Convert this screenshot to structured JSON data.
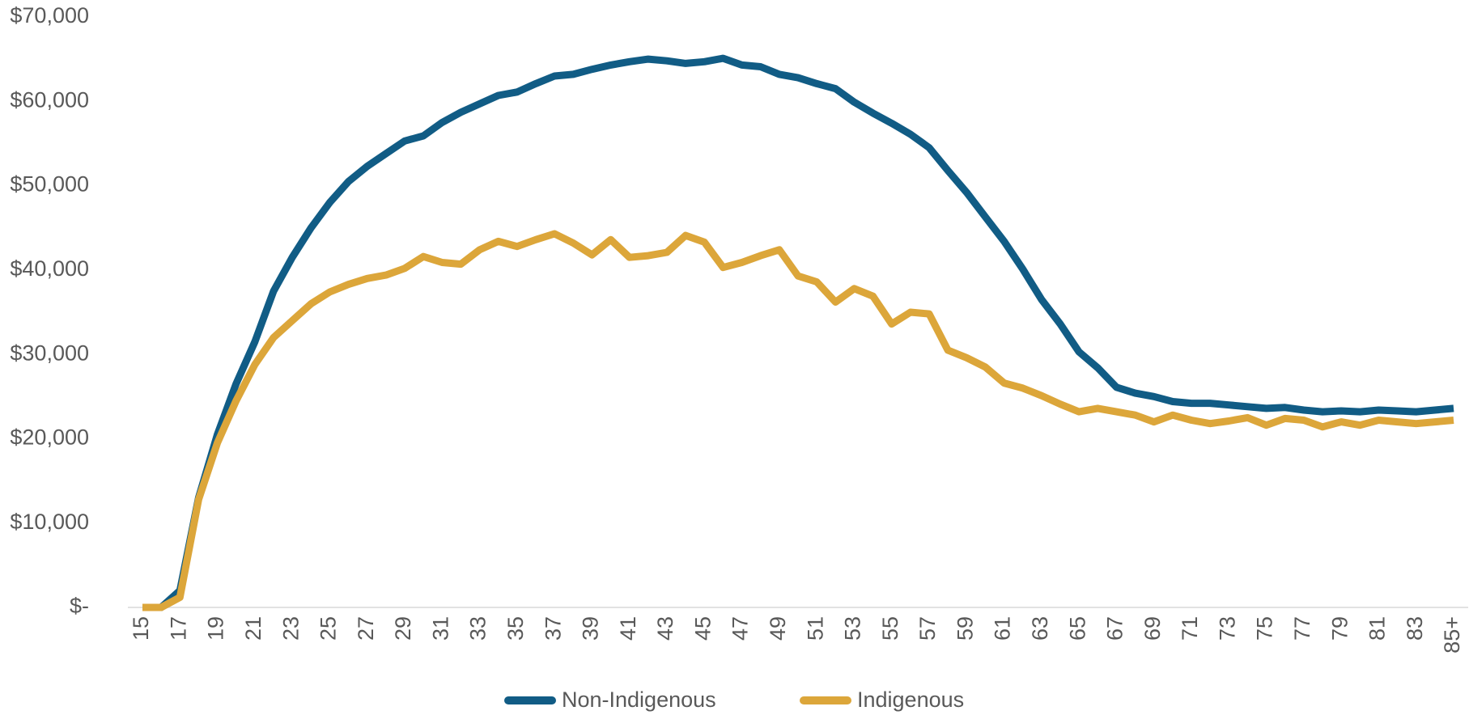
{
  "chart_data": {
    "type": "line",
    "categories": [
      "15",
      null,
      "17",
      null,
      "19",
      null,
      "21",
      null,
      "23",
      null,
      "25",
      null,
      "27",
      null,
      "29",
      null,
      "31",
      null,
      "33",
      null,
      "35",
      null,
      "37",
      null,
      "39",
      null,
      "41",
      null,
      "43",
      null,
      "45",
      null,
      "47",
      null,
      "49",
      null,
      "51",
      null,
      "53",
      null,
      "55",
      null,
      "57",
      null,
      "59",
      null,
      "61",
      null,
      "63",
      null,
      "65",
      null,
      "67",
      null,
      "69",
      null,
      "71",
      null,
      "73",
      null,
      "75",
      null,
      "77",
      null,
      "79",
      null,
      "81",
      null,
      "83",
      null,
      "85+"
    ],
    "series": [
      {
        "name": "Non-Indigenous",
        "color": "#115c85",
        "values": [
          0,
          0,
          2000,
          13000,
          20500,
          26500,
          31500,
          37500,
          41500,
          45000,
          48000,
          50500,
          52300,
          53800,
          55300,
          55900,
          57500,
          58700,
          59700,
          60700,
          61100,
          62100,
          63000,
          63200,
          63800,
          64300,
          64700,
          65000,
          64800,
          64500,
          64700,
          65100,
          64300,
          64100,
          63200,
          62800,
          62100,
          61500,
          59900,
          58600,
          57400,
          56100,
          54500,
          51800,
          49200,
          46300,
          43400,
          40100,
          36500,
          33600,
          30300,
          28400,
          26100,
          25400,
          25000,
          24400,
          24200,
          24200,
          24000,
          23800,
          23600,
          23700,
          23400,
          23200,
          23300,
          23200,
          23400,
          23300,
          23200,
          23400,
          23600
        ]
      },
      {
        "name": "Indigenous",
        "color": "#dca63a",
        "values": [
          0,
          0,
          1200,
          12800,
          19500,
          24500,
          28800,
          32000,
          34000,
          36000,
          37400,
          38300,
          39000,
          39400,
          40200,
          41600,
          40900,
          40700,
          42400,
          43400,
          42800,
          43600,
          44300,
          43200,
          41800,
          43600,
          41500,
          41700,
          42100,
          44100,
          43300,
          40300,
          40900,
          41700,
          42400,
          39300,
          38600,
          36200,
          37800,
          36900,
          33600,
          35000,
          34800,
          30500,
          29600,
          28500,
          26600,
          26000,
          25100,
          24100,
          23200,
          23600,
          23200,
          22800,
          22000,
          22800,
          22200,
          21800,
          22100,
          22500,
          21600,
          22400,
          22200,
          21400,
          22000,
          21600,
          22200,
          22000,
          21800,
          22000,
          22200
        ]
      }
    ],
    "ylim": [
      0,
      70000
    ],
    "yticks": [
      {
        "value": 0,
        "label": "$-"
      },
      {
        "value": 10000,
        "label": "$10,000"
      },
      {
        "value": 20000,
        "label": "$20,000"
      },
      {
        "value": 30000,
        "label": "$30,000"
      },
      {
        "value": 40000,
        "label": "$40,000"
      },
      {
        "value": 50000,
        "label": "$50,000"
      },
      {
        "value": 60000,
        "label": "$60,000"
      },
      {
        "value": 70000,
        "label": "$70,000"
      }
    ],
    "grid": false,
    "legend": "bottom"
  }
}
